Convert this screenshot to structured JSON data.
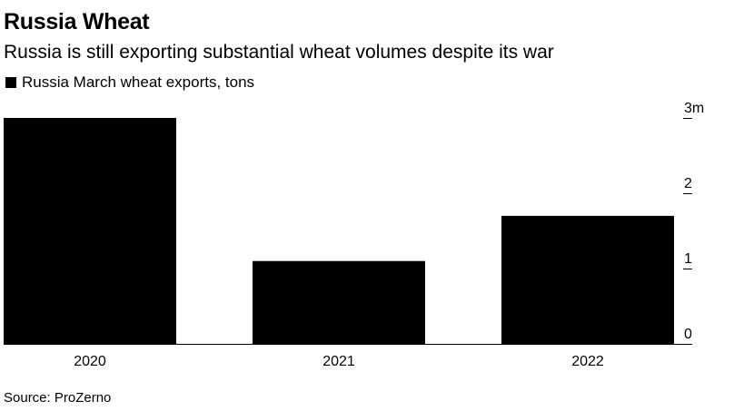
{
  "title": "Russia Wheat",
  "subtitle": "Russia is still exporting substantial wheat volumes despite its war",
  "source": "Source: ProZerno",
  "chart_data": {
    "type": "bar",
    "title": "Russia Wheat",
    "subtitle": "Russia is still exporting substantial wheat volumes despite its war",
    "categories": [
      "2020",
      "2021",
      "2022"
    ],
    "series": [
      {
        "name": "Russia March wheat exports, tons",
        "values": [
          3000000,
          1100000,
          1700000
        ]
      }
    ],
    "ylim": [
      0,
      3000000
    ],
    "y_ticks": [
      {
        "value": 0,
        "label": "0"
      },
      {
        "value": 1000000,
        "label": "1"
      },
      {
        "value": 2000000,
        "label": "2"
      },
      {
        "value": 3000000,
        "label": "3m"
      }
    ],
    "y_axis_side": "right",
    "xlabel": "",
    "ylabel": "",
    "bar_color": "#000000",
    "grid": false,
    "legend_position": "top-left"
  }
}
